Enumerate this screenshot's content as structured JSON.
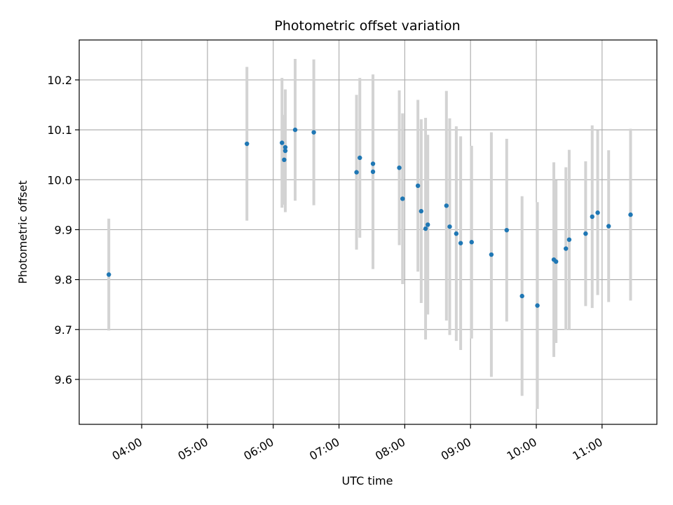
{
  "chart_data": {
    "type": "scatter",
    "title": "Photometric offset variation",
    "xlabel": "UTC time",
    "ylabel": "Photometric offset",
    "x_ticks": [
      "04:00",
      "05:00",
      "06:00",
      "07:00",
      "08:00",
      "09:00",
      "10:00",
      "11:00"
    ],
    "y_ticks": [
      "9.6",
      "9.7",
      "9.8",
      "9.9",
      "10.0",
      "10.1",
      "10.2"
    ],
    "xlim": [
      "03:03",
      "11:50"
    ],
    "ylim": [
      9.51,
      10.28
    ],
    "grid": true,
    "colors": {
      "point": "#1f77b4",
      "errorbar": "#d3d3d3",
      "grid": "#b0b0b0"
    },
    "points": [
      {
        "x": "03:30",
        "y": 9.81,
        "err": 0.112
      },
      {
        "x": "05:36",
        "y": 10.072,
        "err": 0.154
      },
      {
        "x": "06:08",
        "y": 10.074,
        "err": 0.13
      },
      {
        "x": "06:10",
        "y": 10.04,
        "err": 0.09
      },
      {
        "x": "06:11",
        "y": 10.065,
        "err": 0.115
      },
      {
        "x": "06:11",
        "y": 10.058,
        "err": 0.123
      },
      {
        "x": "06:20",
        "y": 10.1,
        "err": 0.142
      },
      {
        "x": "06:37",
        "y": 10.095,
        "err": 0.146
      },
      {
        "x": "07:16",
        "y": 10.015,
        "err": 0.155
      },
      {
        "x": "07:19",
        "y": 10.044,
        "err": 0.16
      },
      {
        "x": "07:31",
        "y": 10.016,
        "err": 0.195
      },
      {
        "x": "07:31",
        "y": 10.032,
        "err": 0.177
      },
      {
        "x": "07:55",
        "y": 10.024,
        "err": 0.155
      },
      {
        "x": "07:58",
        "y": 9.962,
        "err": 0.171
      },
      {
        "x": "08:12",
        "y": 9.988,
        "err": 0.172
      },
      {
        "x": "08:15",
        "y": 9.937,
        "err": 0.184
      },
      {
        "x": "08:19",
        "y": 9.902,
        "err": 0.222
      },
      {
        "x": "08:21",
        "y": 9.91,
        "err": 0.18
      },
      {
        "x": "08:38",
        "y": 9.948,
        "err": 0.23
      },
      {
        "x": "08:41",
        "y": 9.906,
        "err": 0.217
      },
      {
        "x": "08:47",
        "y": 9.892,
        "err": 0.215
      },
      {
        "x": "08:51",
        "y": 9.873,
        "err": 0.214
      },
      {
        "x": "09:01",
        "y": 9.875,
        "err": 0.193
      },
      {
        "x": "09:19",
        "y": 9.85,
        "err": 0.245
      },
      {
        "x": "09:33",
        "y": 9.899,
        "err": 0.183
      },
      {
        "x": "09:47",
        "y": 9.767,
        "err": 0.2
      },
      {
        "x": "10:01",
        "y": 9.748,
        "err": 0.207
      },
      {
        "x": "10:16",
        "y": 9.84,
        "err": 0.195
      },
      {
        "x": "10:18",
        "y": 9.836,
        "err": 0.163
      },
      {
        "x": "10:27",
        "y": 9.862,
        "err": 0.163
      },
      {
        "x": "10:30",
        "y": 9.88,
        "err": 0.18
      },
      {
        "x": "10:45",
        "y": 9.892,
        "err": 0.145
      },
      {
        "x": "10:51",
        "y": 9.926,
        "err": 0.183
      },
      {
        "x": "10:56",
        "y": 9.934,
        "err": 0.165
      },
      {
        "x": "11:06",
        "y": 9.907,
        "err": 0.152
      },
      {
        "x": "11:26",
        "y": 9.93,
        "err": 0.172
      }
    ]
  }
}
